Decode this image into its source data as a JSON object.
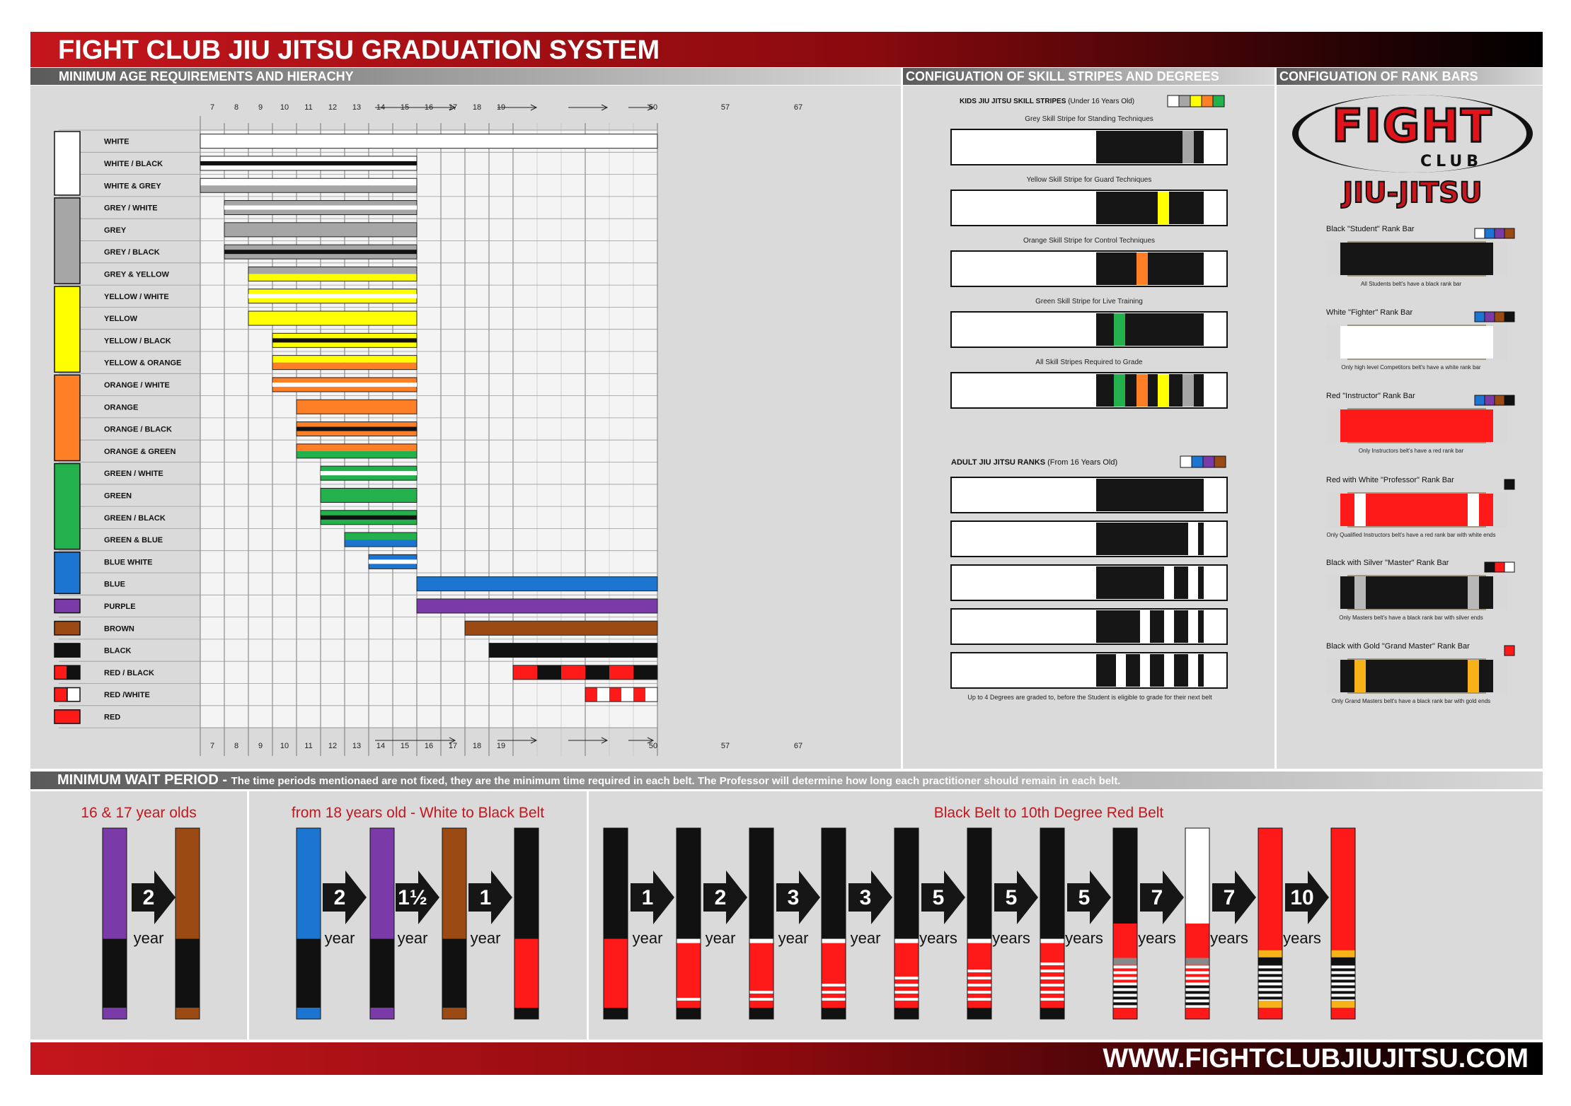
{
  "header": {
    "title": "FIGHT CLUB JIU JITSU GRADUATION SYSTEM"
  },
  "sections": {
    "age": "MINIMUM AGE REQUIREMENTS AND HIERACHY",
    "stripes": "CONFIGUATION OF SKILL STRIPES AND DEGREES",
    "rankbars": "CONFIGUATION OF RANK BARS",
    "wait_label": "MINIMUM WAIT PERIOD - ",
    "wait_note": "The time periods mentionaed are not fixed, they are the minimum time required in each belt. The Professor will determine how long each practitioner should remain in each belt."
  },
  "ages": [
    "7",
    "8",
    "9",
    "10",
    "11",
    "12",
    "13",
    "14",
    "15",
    "16",
    "17",
    "18",
    "19",
    "50",
    "57",
    "67"
  ],
  "belts": [
    {
      "label": "WHITE",
      "start": "7",
      "end": "67+",
      "colors": [
        "#ffffff"
      ]
    },
    {
      "label": "WHITE / BLACK",
      "start": "7",
      "end": "15",
      "colors": [
        "#ffffff",
        "#111111",
        "#ffffff"
      ]
    },
    {
      "label": "WHITE & GREY",
      "start": "7",
      "end": "15",
      "colors": [
        "#ffffff",
        "#a6a6a6"
      ]
    },
    {
      "label": "GREY / WHITE",
      "start": "8",
      "end": "15",
      "colors": [
        "#a6a6a6",
        "#ffffff",
        "#a6a6a6"
      ]
    },
    {
      "label": "GREY",
      "start": "8",
      "end": "15",
      "colors": [
        "#a6a6a6"
      ]
    },
    {
      "label": "GREY / BLACK",
      "start": "8",
      "end": "15",
      "colors": [
        "#a6a6a6",
        "#111111",
        "#a6a6a6"
      ]
    },
    {
      "label": "GREY & YELLOW",
      "start": "9",
      "end": "15",
      "colors": [
        "#a6a6a6",
        "#ffff00"
      ]
    },
    {
      "label": "YELLOW / WHITE",
      "start": "9",
      "end": "15",
      "colors": [
        "#ffff00",
        "#ffffff",
        "#ffff00"
      ]
    },
    {
      "label": "YELLOW",
      "start": "9",
      "end": "15",
      "colors": [
        "#ffff00"
      ]
    },
    {
      "label": "YELLOW / BLACK",
      "start": "10",
      "end": "15",
      "colors": [
        "#ffff00",
        "#111111",
        "#ffff00"
      ]
    },
    {
      "label": "YELLOW & ORANGE",
      "start": "10",
      "end": "15",
      "colors": [
        "#ffff00",
        "#ff7f27"
      ]
    },
    {
      "label": "ORANGE / WHITE",
      "start": "10",
      "end": "15",
      "colors": [
        "#ff7f27",
        "#ffffff",
        "#ff7f27"
      ]
    },
    {
      "label": "ORANGE",
      "start": "11",
      "end": "15",
      "colors": [
        "#ff7f27"
      ]
    },
    {
      "label": "ORANGE / BLACK",
      "start": "11",
      "end": "15",
      "colors": [
        "#ff7f27",
        "#111111",
        "#ff7f27"
      ]
    },
    {
      "label": "ORANGE & GREEN",
      "start": "11",
      "end": "15",
      "colors": [
        "#ff7f27",
        "#22b14c"
      ]
    },
    {
      "label": "GREEN / WHITE",
      "start": "12",
      "end": "15",
      "colors": [
        "#22b14c",
        "#ffffff",
        "#22b14c"
      ]
    },
    {
      "label": "GREEN",
      "start": "12",
      "end": "15",
      "colors": [
        "#22b14c"
      ]
    },
    {
      "label": "GREEN / BLACK",
      "start": "12",
      "end": "15",
      "colors": [
        "#22b14c",
        "#111111",
        "#22b14c"
      ]
    },
    {
      "label": "GREEN & BLUE",
      "start": "13",
      "end": "15",
      "colors": [
        "#22b14c",
        "#1b75d1"
      ]
    },
    {
      "label": "BLUE WHITE",
      "start": "14",
      "end": "15",
      "colors": [
        "#1b75d1",
        "#ffffff",
        "#1b75d1"
      ]
    },
    {
      "label": "BLUE",
      "start": "16",
      "end": "67+",
      "colors": [
        "#1b75d1"
      ]
    },
    {
      "label": "PURPLE",
      "start": "16",
      "end": "67+",
      "colors": [
        "#7a3aa8"
      ]
    },
    {
      "label": "BROWN",
      "start": "18",
      "end": "67+",
      "colors": [
        "#9a4a12"
      ]
    },
    {
      "label": "BLACK",
      "start": "19",
      "end": "67+",
      "colors": [
        "#111111"
      ]
    },
    {
      "label": "RED / BLACK",
      "start": "50",
      "end": "67+",
      "colors": [
        "#ff1a1a",
        "#111111"
      ]
    },
    {
      "label": "RED /WHITE",
      "start": "57",
      "end": "67+",
      "colors": [
        "#ff1a1a",
        "#ffffff"
      ]
    },
    {
      "label": "RED",
      "start": "67",
      "end": "67+",
      "colors": [
        "#ff1a1a"
      ]
    }
  ],
  "colors": {
    "white": "#ffffff",
    "black": "#111111",
    "grey": "#a6a6a6",
    "yellow": "#ffff00",
    "orange": "#ff7f27",
    "green": "#22b14c",
    "blue": "#1b75d1",
    "purple": "#7a3aa8",
    "brown": "#9a4a12",
    "red": "#ff1a1a",
    "gold": "#f7b21a"
  },
  "kids_stripes": {
    "heading": "KIDS JIU JITSU SKILL STRIPES",
    "heading_note": "(Under 16 Years Old)",
    "items": [
      {
        "caption": "Grey Skill Stripe for Standing Techniques"
      },
      {
        "caption": "Yellow Skill Stripe for Guard Techniques"
      },
      {
        "caption": "Orange Skill Stripe for Control Techniques"
      },
      {
        "caption": "Green Skill Stripe for Live Training"
      },
      {
        "caption": "All Skill Stripes Required to Grade"
      }
    ]
  },
  "adult_ranks": {
    "heading": "ADULT JIU JITSU RANKS",
    "heading_note": "(From 16 Years Old)",
    "degrees": [
      0,
      1,
      2,
      3,
      4
    ],
    "footnote": "Up to 4 Degrees are graded to, before the Student is eligible to grade for their next belt"
  },
  "logo": {
    "top": "FIGHT",
    "middle": "CLUB",
    "bottom": "JIU-JITSU"
  },
  "rank_bars": [
    {
      "title": "Black \"Student\" Rank Bar",
      "note": "All Students belt's have a black rank bar"
    },
    {
      "title": "White \"Fighter\" Rank Bar",
      "note": "Only high level Competitors belt's have a white rank bar"
    },
    {
      "title": "Red \"Instructor\" Rank Bar",
      "note": "Only Instructors belt's have a red rank bar"
    },
    {
      "title": "Red with White \"Professor\" Rank Bar",
      "note": "Only Qualified Instructors belt's have a red rank bar with white ends"
    },
    {
      "title": "Black with Silver \"Master\" Rank Bar",
      "note": "Only Masters belt's have a black rank bar with silver ends"
    },
    {
      "title": "Black with Gold \"Grand Master\" Rank Bar",
      "note": "Only Grand Masters belt's have a black rank bar with gold ends"
    }
  ],
  "wait": {
    "groups": [
      {
        "title": "16 & 17 year olds"
      },
      {
        "title": "from 18 years old - White to Black Belt"
      },
      {
        "title": "Black Belt to 10th Degree Red Belt"
      }
    ],
    "arrows": [
      {
        "num": "2",
        "unit": "year"
      },
      {
        "num": "2",
        "unit": "year"
      },
      {
        "num": "1½",
        "unit": "year"
      },
      {
        "num": "1",
        "unit": "year"
      },
      {
        "num": "1",
        "unit": "year"
      },
      {
        "num": "2",
        "unit": "year"
      },
      {
        "num": "3",
        "unit": "year"
      },
      {
        "num": "3",
        "unit": "year"
      },
      {
        "num": "5",
        "unit": "years"
      },
      {
        "num": "5",
        "unit": "years"
      },
      {
        "num": "5",
        "unit": "years"
      },
      {
        "num": "7",
        "unit": "years"
      },
      {
        "num": "7",
        "unit": "years"
      },
      {
        "num": "10",
        "unit": "years"
      },
      {
        "num": "∞",
        "unit": "years"
      }
    ]
  },
  "footer": {
    "url": "WWW.FIGHTCLUBJIUJITSU.COM"
  }
}
